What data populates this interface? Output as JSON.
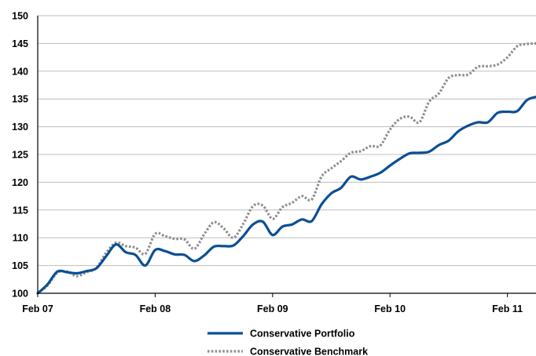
{
  "colors": {
    "portfolio": "#0b4f94",
    "benchmark": "#8e8e8e",
    "gridline": "#bdbdbd",
    "axis": "#000000"
  },
  "legend": {
    "portfolio_label": "Conservative Portfolio",
    "benchmark_label": "Conservative Benchmark"
  },
  "chart_data": {
    "type": "line",
    "title": "",
    "xlabel": "",
    "ylabel": "",
    "ylim": [
      100,
      150
    ],
    "yticks": [
      100,
      105,
      110,
      115,
      120,
      125,
      130,
      135,
      140,
      145,
      150
    ],
    "xlim": [
      0,
      51
    ],
    "xticks": [
      {
        "value": 0,
        "label": "Feb 07"
      },
      {
        "value": 12,
        "label": "Feb 08"
      },
      {
        "value": 24,
        "label": "Feb 09"
      },
      {
        "value": 36,
        "label": "Feb 10"
      },
      {
        "value": 48,
        "label": "Feb 11"
      }
    ],
    "grid": "horizontal",
    "legend_position": "bottom",
    "x": [
      0,
      1,
      2,
      3,
      4,
      5,
      6,
      7,
      8,
      9,
      10,
      11,
      12,
      13,
      14,
      15,
      16,
      17,
      18,
      19,
      20,
      21,
      22,
      23,
      24,
      25,
      26,
      27,
      28,
      29,
      30,
      31,
      32,
      33,
      34,
      35,
      36,
      37,
      38,
      39,
      40,
      41,
      42,
      43,
      44,
      45,
      46,
      47,
      48,
      49,
      50,
      51
    ],
    "series": [
      {
        "name": "Conservative Portfolio",
        "style": "solid",
        "values": [
          100.0,
          101.6,
          103.9,
          103.8,
          103.6,
          104.0,
          104.5,
          106.7,
          108.8,
          107.4,
          106.9,
          105.0,
          107.8,
          107.6,
          107.0,
          106.9,
          105.8,
          106.8,
          108.4,
          108.5,
          108.6,
          110.3,
          112.4,
          112.9,
          110.5,
          112.0,
          112.4,
          113.3,
          113.0,
          116.0,
          118.0,
          119.0,
          121.0,
          120.5,
          121.0,
          121.7,
          123.0,
          124.2,
          125.2,
          125.3,
          125.5,
          126.7,
          127.5,
          129.2,
          130.2,
          130.8,
          130.8,
          132.5,
          132.7,
          132.8,
          134.8,
          135.4
        ]
      },
      {
        "name": "Conservative Benchmark",
        "style": "dotted",
        "values": [
          100.0,
          101.4,
          103.7,
          103.9,
          103.1,
          103.8,
          104.6,
          107.3,
          109.1,
          108.5,
          108.2,
          107.1,
          110.7,
          110.3,
          109.8,
          109.7,
          108.0,
          110.6,
          112.8,
          111.7,
          110.0,
          112.5,
          115.7,
          115.8,
          113.4,
          115.5,
          116.3,
          117.5,
          116.9,
          121.0,
          122.5,
          123.8,
          125.3,
          125.6,
          126.5,
          126.6,
          129.5,
          131.4,
          131.8,
          130.8,
          134.5,
          136.0,
          138.8,
          139.3,
          139.4,
          140.8,
          140.9,
          141.2,
          142.5,
          144.5,
          144.9,
          145.0
        ]
      }
    ]
  }
}
